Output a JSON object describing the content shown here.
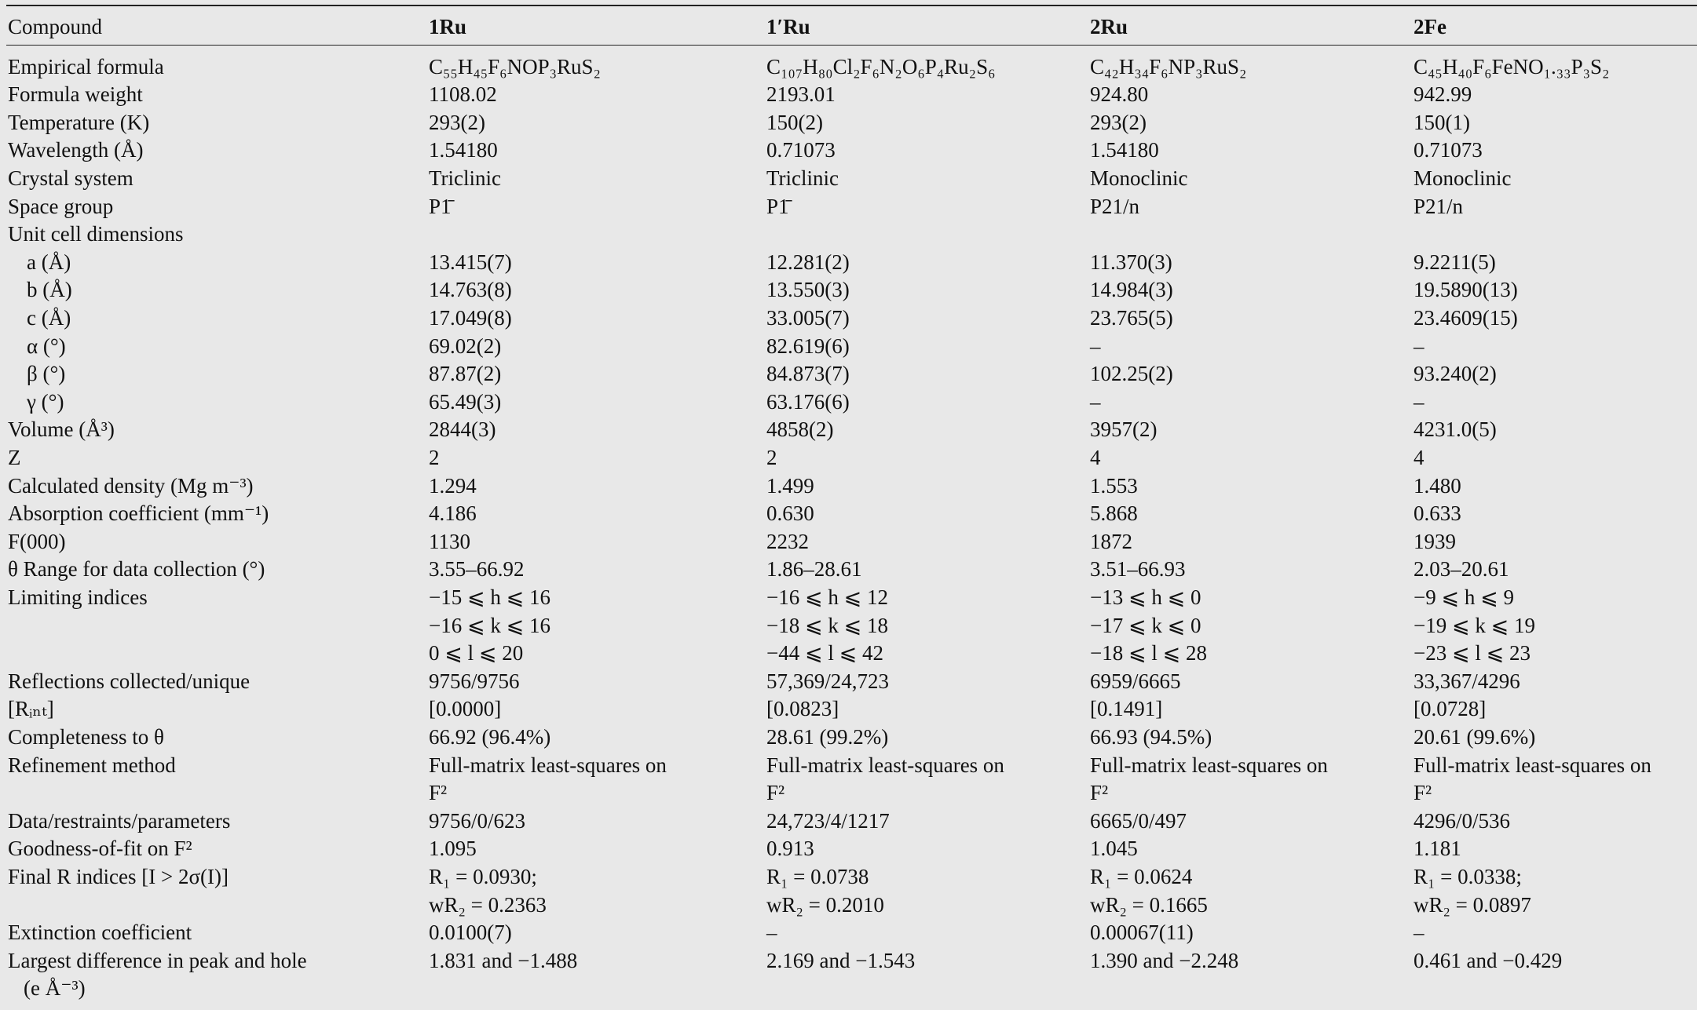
{
  "table": {
    "header": [
      "Compound",
      "1Ru",
      "1′Ru",
      "2Ru",
      "2Fe"
    ],
    "rows": [
      {
        "label": "Empirical formula",
        "cells": [
          "C₅₅H₄₅F₆NOP₃RuS₂",
          "C₁₀₇H₈₀Cl₂F₆N₂O₆P₄Ru₂S₆",
          "C₄₂H₃₄F₆NP₃RuS₂",
          "C₄₅H₄₀F₆FeNO₁.₃₃P₃S₂"
        ]
      },
      {
        "label": "Formula weight",
        "cells": [
          "1108.02",
          "2193.01",
          "924.80",
          "942.99"
        ]
      },
      {
        "label": "Temperature (K)",
        "cells": [
          "293(2)",
          "150(2)",
          "293(2)",
          "150(1)"
        ]
      },
      {
        "label": "Wavelength (Å)",
        "cells": [
          "1.54180",
          "0.71073",
          "1.54180",
          "0.71073"
        ]
      },
      {
        "label": "Crystal system",
        "cells": [
          "Triclinic",
          "Triclinic",
          "Monoclinic",
          "Monoclinic"
        ]
      },
      {
        "label": "Space group",
        "cells": [
          "P1̄",
          "P1̄",
          "P21/n",
          "P21/n"
        ]
      },
      {
        "label": "Unit cell dimensions"
      },
      {
        "label": "a (Å)",
        "cells": [
          "13.415(7)",
          "12.281(2)",
          "11.370(3)",
          "9.2211(5)"
        ]
      },
      {
        "label": "b (Å)",
        "cells": [
          "14.763(8)",
          "13.550(3)",
          "14.984(3)",
          "19.5890(13)"
        ]
      },
      {
        "label": "c (Å)",
        "cells": [
          "17.049(8)",
          "33.005(7)",
          "23.765(5)",
          "23.4609(15)"
        ]
      },
      {
        "label": "α (°)",
        "cells": [
          "69.02(2)",
          "82.619(6)",
          "–",
          "–"
        ]
      },
      {
        "label": "β (°)",
        "cells": [
          "87.87(2)",
          "84.873(7)",
          "102.25(2)",
          "93.240(2)"
        ]
      },
      {
        "label": "γ (°)",
        "cells": [
          "65.49(3)",
          "63.176(6)",
          "–",
          "–"
        ]
      },
      {
        "label": "Volume (Å³)",
        "cells": [
          "2844(3)",
          "4858(2)",
          "3957(2)",
          "4231.0(5)"
        ]
      },
      {
        "label": "Z",
        "cells": [
          "2",
          "2",
          "4",
          "4"
        ]
      },
      {
        "label": "Calculated density (Mg m⁻³)",
        "cells": [
          "1.294",
          "1.499",
          "1.553",
          "1.480"
        ]
      },
      {
        "label": "Absorption coefficient (mm⁻¹)",
        "cells": [
          "4.186",
          "0.630",
          "5.868",
          "0.633"
        ]
      },
      {
        "label": "F(000)",
        "cells": [
          "1130",
          "2232",
          "1872",
          "1939"
        ]
      },
      {
        "label": "θ Range for data collection (°)",
        "cells": [
          "3.55–66.92",
          "1.86–28.61",
          "3.51–66.93",
          "2.03–20.61"
        ]
      },
      {
        "label": "Limiting indices",
        "cells": [
          [
            "−15 ⩽ h ⩽ 16",
            "−16 ⩽ k ⩽ 16",
            "0 ⩽ l ⩽ 20"
          ],
          [
            "−16 ⩽ h ⩽ 12",
            "−18 ⩽ k ⩽ 18",
            "−44 ⩽ l ⩽ 42"
          ],
          [
            "−13 ⩽ h ⩽ 0",
            "−17 ⩽ k ⩽ 0",
            "−18 ⩽ l ⩽ 28"
          ],
          [
            "−9 ⩽ h ⩽ 9",
            "−19 ⩽ k ⩽ 19",
            "−23 ⩽ l ⩽ 23"
          ]
        ]
      },
      {
        "label": "Reflections collected/unique",
        "cells": [
          "9756/9756",
          "57,369/24,723",
          "6959/6665",
          "33,367/4296"
        ]
      },
      {
        "label": "[Rᵢₙₜ]",
        "cells": [
          "[0.0000]",
          "[0.0823]",
          "[0.1491]",
          "[0.0728]"
        ]
      },
      {
        "label": "Completeness to θ",
        "cells": [
          "66.92 (96.4%)",
          "28.61 (99.2%)",
          "66.93 (94.5%)",
          "20.61 (99.6%)"
        ]
      },
      {
        "label": "Refinement method",
        "cells": [
          [
            "Full-matrix least-squares on",
            "F²"
          ],
          [
            "Full-matrix least-squares on",
            "F²"
          ],
          [
            "Full-matrix least-squares on",
            "F²"
          ],
          [
            "Full-matrix least-squares on",
            "F²"
          ]
        ]
      },
      {
        "label": "Data/restraints/parameters",
        "cells": [
          "9756/0/623",
          "24,723/4/1217",
          "6665/0/497",
          "4296/0/536"
        ]
      },
      {
        "label": "Goodness-of-fit on F²",
        "cells": [
          "1.095",
          "0.913",
          "1.045",
          "1.181"
        ]
      },
      {
        "label": "Final R indices [I > 2σ(I)]",
        "cells": [
          [
            "R₁ = 0.0930;",
            "wR₂ = 0.2363"
          ],
          [
            "R₁ = 0.0738",
            "wR₂ = 0.2010"
          ],
          [
            "R₁ = 0.0624",
            "wR₂ = 0.1665"
          ],
          [
            "R₁ = 0.0338;",
            "wR₂ = 0.0897"
          ]
        ]
      },
      {
        "label": "Extinction coefficient",
        "cells": [
          "0.0100(7)",
          "–",
          "0.00067(11)",
          "–"
        ]
      },
      {
        "label": [
          "Largest difference in peak and hole",
          "(e Å⁻³)"
        ],
        "cells": [
          "1.831 and −1.488",
          "2.169 and −1.543",
          "1.390 and −2.248",
          "0.461 and −0.429"
        ]
      }
    ]
  }
}
